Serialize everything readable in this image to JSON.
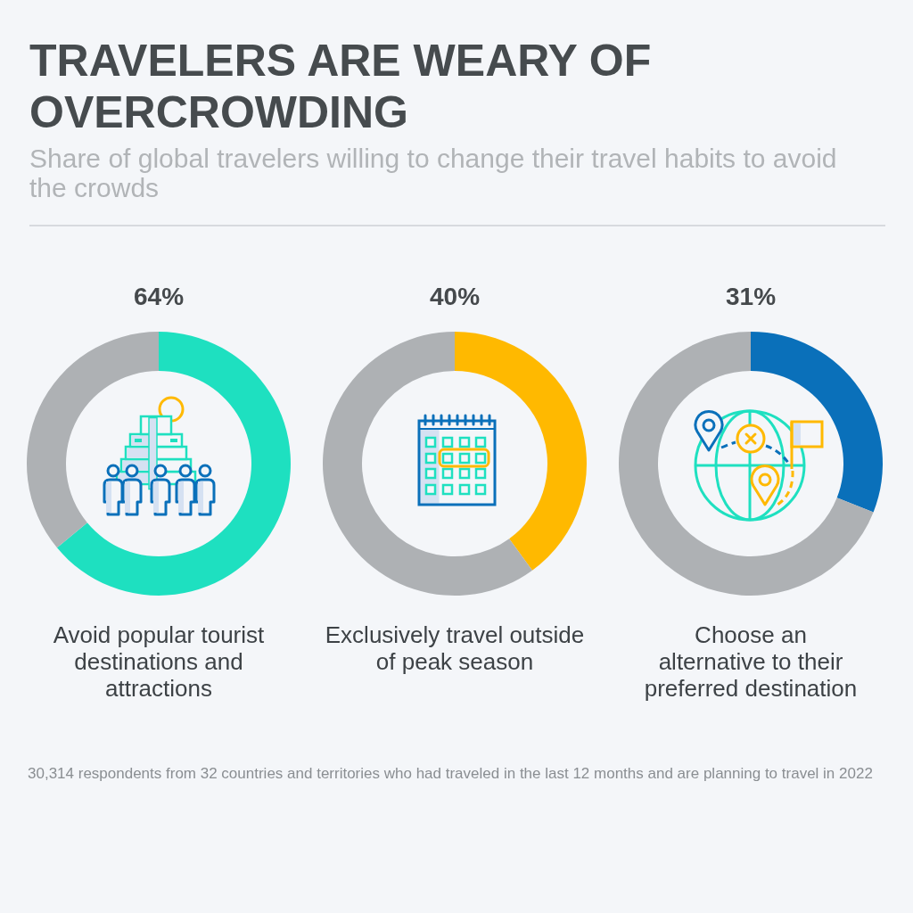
{
  "chart_data": [
    {
      "type": "donut",
      "title": "TRAVELERS ARE WEARY OF OVERCROWDING",
      "subtitle": "Share of global travelers willing to change their travel habits to avoid the crowds",
      "values": [
        64,
        36
      ],
      "colors": [
        "#1ee0c0",
        "#aeb1b4"
      ],
      "value_labels": [
        "64%",
        null
      ],
      "annotations": [
        "Avoid popular tourist destinations and attractions"
      ]
    },
    {
      "type": "donut",
      "values": [
        40,
        60
      ],
      "colors": [
        "#ffb900",
        "#aeb1b4"
      ],
      "value_labels": [
        "40%",
        null
      ],
      "annotations": [
        "Exclusively travel outside of peak season"
      ]
    },
    {
      "type": "donut",
      "values": [
        31,
        69
      ],
      "colors": [
        "#0a70ba",
        "#aeb1b4"
      ],
      "value_labels": [
        "31%",
        null
      ],
      "annotations": [
        "Choose an alternative to their preferred destination",
        "30,314 respondents from 32 countries and territories who had traveled in the last 12 months and are planning to travel in 2022"
      ]
    }
  ]
}
